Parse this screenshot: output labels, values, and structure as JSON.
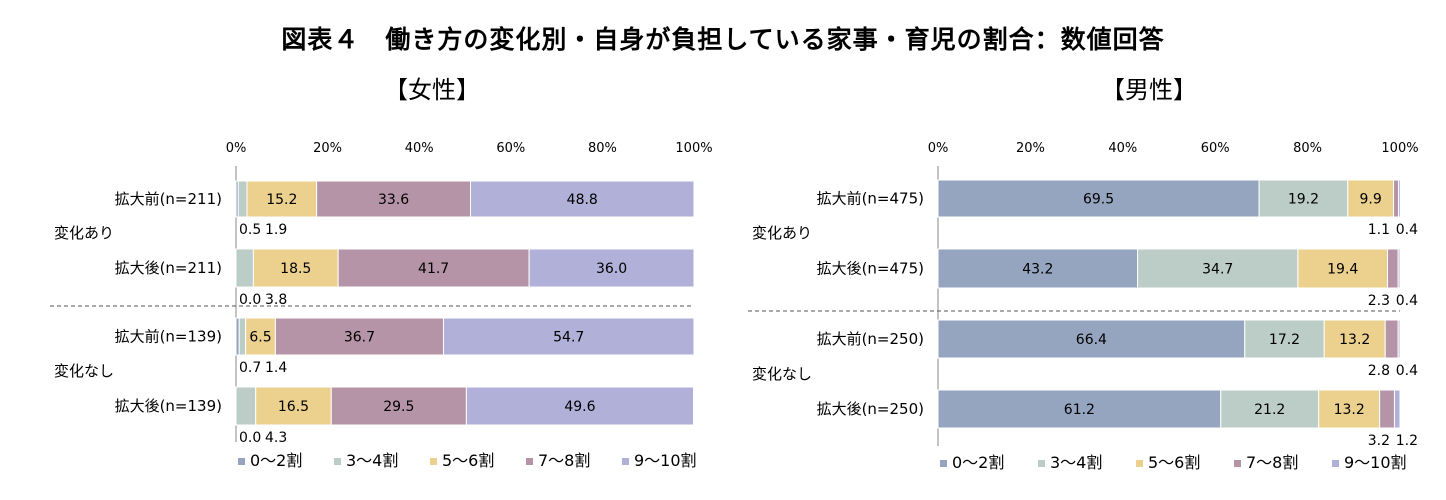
{
  "title": "図表４　働き方の変化別・自身が負担している家事・育児の割合：数値回答",
  "categories_legend": [
    "0〜2割",
    "3〜4割",
    "5〜6割",
    "7〜8割",
    "9〜10割"
  ],
  "colors": [
    "#95a5c0",
    "#bcccc6",
    "#ebd08e",
    "#b494a6",
    "#b0b0d8"
  ],
  "chart_data": [
    {
      "type": "bar",
      "orientation": "horizontal-stacked-100",
      "panel_title": "【女性】",
      "xlim": [
        0,
        100
      ],
      "x_ticks": [
        "0%",
        "20%",
        "40%",
        "60%",
        "80%",
        "100%"
      ],
      "groups": [
        {
          "name": "変化あり",
          "rows": [
            {
              "label": "拡大前(n=211)",
              "values": [
                0.5,
                1.9,
                15.2,
                33.6,
                48.8
              ]
            },
            {
              "label": "拡大後(n=211)",
              "values": [
                0.0,
                3.8,
                18.5,
                41.7,
                36.0
              ]
            }
          ]
        },
        {
          "name": "変化なし",
          "rows": [
            {
              "label": "拡大前(n=139)",
              "values": [
                0.7,
                1.4,
                6.5,
                36.7,
                54.7
              ]
            },
            {
              "label": "拡大後(n=139)",
              "values": [
                0.0,
                4.3,
                16.5,
                29.5,
                49.6
              ]
            }
          ]
        }
      ],
      "series": [
        {
          "name": "0〜2割"
        },
        {
          "name": "3〜4割"
        },
        {
          "name": "5〜6割"
        },
        {
          "name": "7〜8割"
        },
        {
          "name": "9〜10割"
        }
      ]
    },
    {
      "type": "bar",
      "orientation": "horizontal-stacked-100",
      "panel_title": "【男性】",
      "xlim": [
        0,
        100
      ],
      "x_ticks": [
        "0%",
        "20%",
        "40%",
        "60%",
        "80%",
        "100%"
      ],
      "groups": [
        {
          "name": "変化あり",
          "rows": [
            {
              "label": "拡大前(n=475)",
              "values": [
                69.5,
                19.2,
                9.9,
                1.1,
                0.4
              ]
            },
            {
              "label": "拡大後(n=475)",
              "values": [
                43.2,
                34.7,
                19.4,
                2.3,
                0.4
              ]
            }
          ]
        },
        {
          "name": "変化なし",
          "rows": [
            {
              "label": "拡大前(n=250)",
              "values": [
                66.4,
                17.2,
                13.2,
                2.8,
                0.4
              ]
            },
            {
              "label": "拡大後(n=250)",
              "values": [
                61.2,
                21.2,
                13.2,
                3.2,
                1.2
              ]
            }
          ]
        }
      ],
      "series": [
        {
          "name": "0〜2割"
        },
        {
          "name": "3〜4割"
        },
        {
          "name": "5〜6割"
        },
        {
          "name": "7〜8割"
        },
        {
          "name": "9〜10割"
        }
      ]
    }
  ]
}
